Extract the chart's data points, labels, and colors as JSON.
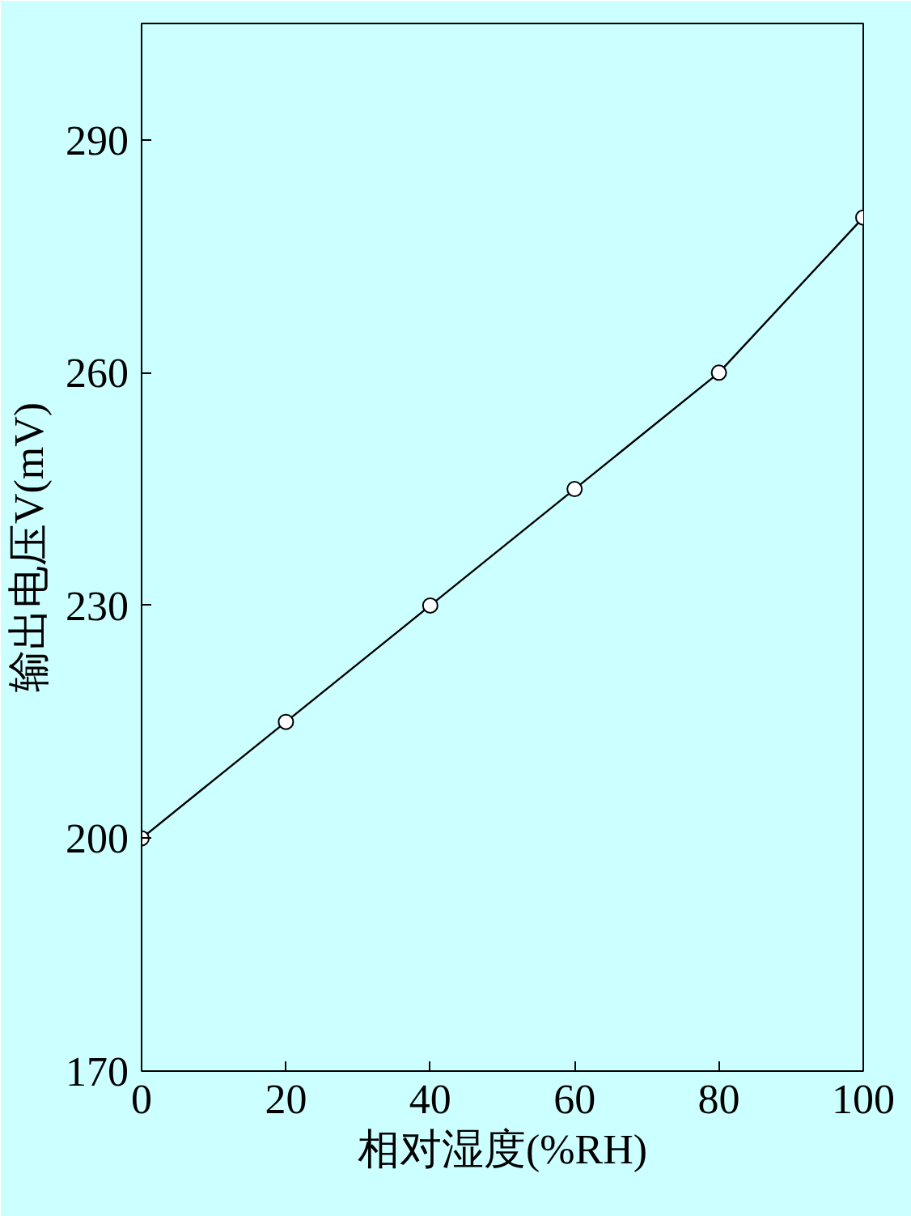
{
  "chart_data": {
    "type": "line",
    "xlabel": "相对湿度(%RH)",
    "ylabel": "输出电压V(mV)",
    "x": [
      0,
      20,
      40,
      60,
      80,
      100
    ],
    "series": [
      {
        "color": "#000000",
        "values": [
          200,
          215,
          230,
          245,
          260,
          280
        ]
      }
    ],
    "xlim": [
      0,
      100
    ],
    "ylim": [
      170,
      305
    ],
    "xticks": [
      0,
      20,
      40,
      60,
      80,
      100
    ],
    "yticks": [
      170,
      200,
      230,
      260,
      290
    ],
    "grid": false,
    "marker": "circle",
    "line_style": "solid"
  }
}
